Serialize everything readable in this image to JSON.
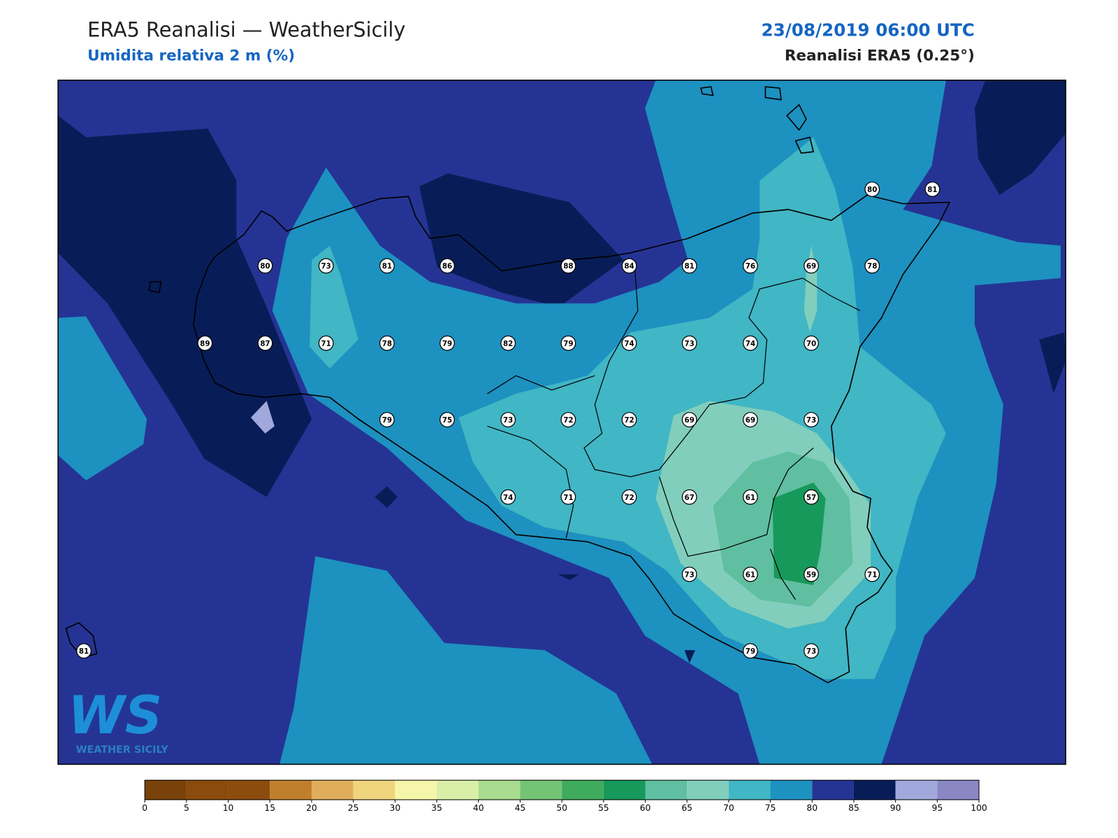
{
  "header": {
    "title": "ERA5 Reanalisi — WeatherSicily",
    "subtitle": "Umidita relativa 2 m (%)",
    "datetime": "23/08/2019 06:00 UTC",
    "source": "Reanalisi ERA5 (0.25°)"
  },
  "stations": [
    80,
    81,
    80,
    73,
    81,
    86,
    88,
    84,
    81,
    76,
    69,
    78,
    89,
    87,
    71,
    78,
    79,
    82,
    79,
    74,
    73,
    74,
    70,
    79,
    75,
    73,
    72,
    72,
    69,
    69,
    73,
    74,
    71,
    72,
    67,
    61,
    57,
    73,
    61,
    59,
    71,
    79,
    73,
    81
  ],
  "logo": {
    "mark": "WS",
    "text": "WEATHER SICILY"
  },
  "colorbar": {
    "ticks": [
      0,
      5,
      10,
      15,
      20,
      25,
      30,
      35,
      40,
      45,
      50,
      55,
      60,
      65,
      70,
      75,
      80,
      85,
      90,
      95,
      100
    ],
    "colors": [
      "#79420a",
      "#8a4b0c",
      "#8c4c0e",
      "#c07f2c",
      "#e0ae5b",
      "#f0d57e",
      "#f6f6aa",
      "#d9efa7",
      "#a9dc8e",
      "#74c476",
      "#3fab5d",
      "#17995b",
      "#5fbfa0",
      "#81cebd",
      "#41b6c4",
      "#1d91c0",
      "#253494",
      "#081d58",
      "#a1a9dc",
      "#8a87c5"
    ]
  }
}
